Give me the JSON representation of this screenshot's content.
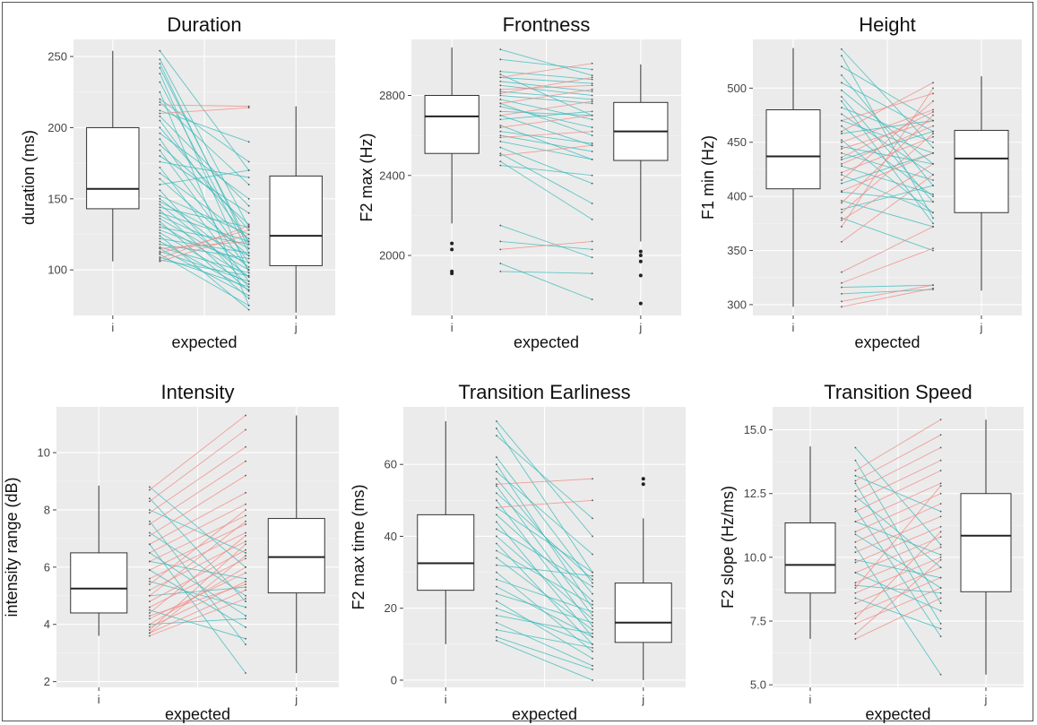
{
  "chart_data": [
    {
      "type": "boxplot-slopegraph",
      "title": "Duration",
      "xlabel": "expected",
      "ylabel": "duration (ms)",
      "categories": [
        "i",
        "j"
      ],
      "yticks": [
        100,
        150,
        200,
        250
      ],
      "ylim": [
        68,
        262
      ],
      "boxes": {
        "i": {
          "min": 106,
          "q1": 143,
          "median": 157,
          "q3": 200,
          "max": 254,
          "outliers": []
        },
        "j": {
          "min": 70,
          "q1": 103,
          "median": 124,
          "q3": 166,
          "max": 215,
          "outliers": []
        }
      },
      "lines_cyan": [
        [
          254,
          170
        ],
        [
          248,
          130
        ],
        [
          245,
          115
        ],
        [
          242,
          118
        ],
        [
          238,
          98
        ],
        [
          232,
          112
        ],
        [
          225,
          75
        ],
        [
          220,
          176
        ],
        [
          218,
          160
        ],
        [
          212,
          190
        ],
        [
          208,
          145
        ],
        [
          205,
          120
        ],
        [
          200,
          128
        ],
        [
          196,
          150
        ],
        [
          192,
          105
        ],
        [
          188,
          132
        ],
        [
          184,
          100
        ],
        [
          180,
          140
        ],
        [
          176,
          165
        ],
        [
          172,
          92
        ],
        [
          168,
          122
        ],
        [
          164,
          110
        ],
        [
          160,
          170
        ],
        [
          156,
          88
        ],
        [
          152,
          125
        ],
        [
          150,
          102
        ],
        [
          148,
          115
        ],
        [
          146,
          95
        ],
        [
          144,
          130
        ],
        [
          142,
          85
        ],
        [
          140,
          120
        ],
        [
          138,
          110
        ],
        [
          136,
          100
        ],
        [
          134,
          80
        ],
        [
          132,
          95
        ],
        [
          130,
          118
        ],
        [
          128,
          105
        ],
        [
          126,
          90
        ],
        [
          124,
          72
        ],
        [
          122,
          112
        ],
        [
          120,
          86
        ],
        [
          118,
          108
        ],
        [
          116,
          98
        ],
        [
          115,
          82
        ],
        [
          113,
          92
        ],
        [
          111,
          75
        ],
        [
          109,
          88
        ],
        [
          107,
          96
        ]
      ],
      "lines_red": [
        [
          216,
          215
        ],
        [
          210,
          214
        ],
        [
          112,
          128
        ],
        [
          115,
          120
        ],
        [
          108,
          131
        ],
        [
          106,
          125
        ]
      ]
    },
    {
      "type": "boxplot-slopegraph",
      "title": "Frontness",
      "xlabel": "expected",
      "ylabel": "F2 max (Hz)",
      "categories": [
        "i",
        "j"
      ],
      "yticks": [
        2000,
        2400,
        2800
      ],
      "yticklabels": [
        "2000",
        "2400",
        "2800"
      ],
      "ylim": [
        1700,
        3080
      ],
      "boxes": {
        "i": {
          "min": 2160,
          "q1": 2510,
          "median": 2695,
          "q3": 2800,
          "max": 3040,
          "outliers": [
            1910,
            1920,
            2030,
            2060
          ]
        },
        "j": {
          "min": 2070,
          "q1": 2475,
          "median": 2620,
          "q3": 2765,
          "max": 2955,
          "outliers": [
            1760,
            1900,
            1970,
            2000,
            2020
          ]
        }
      },
      "lines_cyan": [
        [
          3030,
          2900
        ],
        [
          2980,
          2930
        ],
        [
          2920,
          2880
        ],
        [
          2905,
          2700
        ],
        [
          2890,
          2860
        ],
        [
          2870,
          2820
        ],
        [
          2850,
          2800
        ],
        [
          2820,
          2780
        ],
        [
          2800,
          2760
        ],
        [
          2780,
          2680
        ],
        [
          2760,
          2600
        ],
        [
          2745,
          2640
        ],
        [
          2720,
          2700
        ],
        [
          2700,
          2550
        ],
        [
          2680,
          2720
        ],
        [
          2650,
          2480
        ],
        [
          2620,
          2560
        ],
        [
          2600,
          2520
        ],
        [
          2570,
          2480
        ],
        [
          2540,
          2360
        ],
        [
          2510,
          2260
        ],
        [
          2470,
          2180
        ],
        [
          2450,
          2400
        ],
        [
          2150,
          1990
        ],
        [
          2070,
          2030
        ],
        [
          1960,
          1780
        ],
        [
          1920,
          1910
        ]
      ],
      "lines_red": [
        [
          2890,
          2960
        ],
        [
          2830,
          2850
        ],
        [
          2810,
          2890
        ],
        [
          2760,
          2830
        ],
        [
          2700,
          2770
        ],
        [
          2640,
          2700
        ],
        [
          2590,
          2620
        ],
        [
          2500,
          2550
        ],
        [
          2030,
          2070
        ]
      ]
    },
    {
      "type": "boxplot-slopegraph",
      "title": "Height",
      "xlabel": "expected",
      "ylabel": "F1 min (Hz)",
      "categories": [
        "i",
        "j"
      ],
      "yticks": [
        300,
        350,
        400,
        450,
        500
      ],
      "ylim": [
        290,
        545
      ],
      "boxes": {
        "i": {
          "min": 298,
          "q1": 407,
          "median": 437,
          "q3": 480,
          "max": 537,
          "outliers": []
        },
        "j": {
          "min": 313,
          "q1": 385,
          "median": 435,
          "q3": 461,
          "max": 511,
          "outliers": []
        }
      },
      "lines_cyan": [
        [
          536,
          445
        ],
        [
          530,
          380
        ],
        [
          520,
          470
        ],
        [
          512,
          410
        ],
        [
          505,
          460
        ],
        [
          498,
          430
        ],
        [
          492,
          395
        ],
        [
          488,
          375
        ],
        [
          482,
          450
        ],
        [
          476,
          420
        ],
        [
          470,
          440
        ],
        [
          465,
          400
        ],
        [
          458,
          470
        ],
        [
          452,
          385
        ],
        [
          446,
          430
        ],
        [
          440,
          415
        ],
        [
          434,
          460
        ],
        [
          428,
          402
        ],
        [
          420,
          385
        ],
        [
          412,
          440
        ],
        [
          404,
          395
        ],
        [
          396,
          372
        ],
        [
          388,
          410
        ],
        [
          380,
          350
        ],
        [
          316,
          318
        ],
        [
          310,
          314
        ]
      ],
      "lines_red": [
        [
          470,
          495
        ],
        [
          460,
          505
        ],
        [
          450,
          480
        ],
        [
          444,
          470
        ],
        [
          436,
          478
        ],
        [
          430,
          465
        ],
        [
          422,
          455
        ],
        [
          415,
          488
        ],
        [
          405,
          440
        ],
        [
          394,
          475
        ],
        [
          385,
          458
        ],
        [
          378,
          430
        ],
        [
          372,
          500
        ],
        [
          358,
          420
        ],
        [
          330,
          372
        ],
        [
          320,
          352
        ],
        [
          303,
          318
        ],
        [
          298,
          315
        ]
      ]
    },
    {
      "type": "boxplot-slopegraph",
      "title": "Intensity",
      "xlabel": "expected",
      "ylabel": "intensity range (dB)",
      "categories": [
        "i",
        "j"
      ],
      "yticks": [
        2,
        4,
        6,
        8,
        10
      ],
      "ylim": [
        1.8,
        11.6
      ],
      "boxes": {
        "i": {
          "min": 3.6,
          "q1": 4.4,
          "median": 5.25,
          "q3": 6.5,
          "max": 8.85,
          "outliers": []
        },
        "j": {
          "min": 2.3,
          "q1": 5.1,
          "median": 6.35,
          "q3": 7.7,
          "max": 11.3,
          "outliers": []
        }
      },
      "lines_cyan": [
        [
          8.8,
          6.0
        ],
        [
          8.4,
          4.8
        ],
        [
          8.0,
          6.5
        ],
        [
          7.6,
          3.3
        ],
        [
          7.2,
          5.0
        ],
        [
          6.8,
          2.3
        ],
        [
          6.5,
          4.3
        ],
        [
          6.2,
          5.6
        ],
        [
          5.9,
          3.9
        ],
        [
          5.5,
          4.6
        ],
        [
          5.0,
          5.3
        ],
        [
          4.5,
          3.5
        ],
        [
          4.0,
          4.2
        ]
      ],
      "lines_red": [
        [
          8.7,
          11.3
        ],
        [
          8.3,
          10.8
        ],
        [
          7.9,
          10.2
        ],
        [
          7.5,
          9.7
        ],
        [
          7.1,
          9.2
        ],
        [
          6.8,
          8.6
        ],
        [
          6.5,
          8.2
        ],
        [
          6.2,
          7.8
        ],
        [
          5.9,
          7.5
        ],
        [
          5.6,
          7.2
        ],
        [
          5.4,
          8.0
        ],
        [
          5.2,
          6.9
        ],
        [
          5.0,
          7.6
        ],
        [
          4.8,
          6.6
        ],
        [
          4.6,
          6.3
        ],
        [
          4.4,
          7.1
        ],
        [
          4.2,
          5.8
        ],
        [
          4.0,
          6.0
        ],
        [
          3.9,
          5.5
        ],
        [
          3.8,
          6.8
        ],
        [
          3.7,
          5.2
        ],
        [
          3.6,
          4.9
        ],
        [
          3.7,
          6.4
        ],
        [
          4.3,
          5.4
        ]
      ]
    },
    {
      "type": "boxplot-slopegraph",
      "title": "Transition Earliness",
      "xlabel": "expected",
      "ylabel": "F2 max time (ms)",
      "categories": [
        "i",
        "j"
      ],
      "yticks": [
        0,
        20,
        40,
        60
      ],
      "ylim": [
        -2,
        76
      ],
      "boxes": {
        "i": {
          "min": 10,
          "q1": 25,
          "median": 32.5,
          "q3": 46,
          "max": 72,
          "outliers": []
        },
        "j": {
          "min": 0,
          "q1": 10.5,
          "median": 16,
          "q3": 27,
          "max": 45,
          "outliers": [
            54.5,
            56
          ]
        }
      },
      "lines_cyan": [
        [
          72,
          40
        ],
        [
          70,
          30
        ],
        [
          68,
          45
        ],
        [
          62,
          27
        ],
        [
          60,
          20
        ],
        [
          58,
          35
        ],
        [
          56,
          24
        ],
        [
          54,
          18
        ],
        [
          52,
          28
        ],
        [
          50,
          15
        ],
        [
          48,
          30
        ],
        [
          46,
          22
        ],
        [
          44,
          12
        ],
        [
          42,
          26
        ],
        [
          40,
          17
        ],
        [
          38,
          10
        ],
        [
          36,
          21
        ],
        [
          34,
          14
        ],
        [
          32,
          29
        ],
        [
          30,
          8
        ],
        [
          28,
          19
        ],
        [
          26,
          12
        ],
        [
          24,
          16
        ],
        [
          22,
          6
        ],
        [
          20,
          10
        ],
        [
          18,
          13
        ],
        [
          16,
          4
        ],
        [
          14,
          9
        ],
        [
          12,
          3
        ],
        [
          11,
          0
        ]
      ],
      "lines_red": [
        [
          54.5,
          56
        ],
        [
          48,
          50
        ]
      ]
    },
    {
      "type": "boxplot-slopegraph",
      "title": "Transition Speed",
      "xlabel": "expected",
      "ylabel": "F2 slope (Hz/ms)",
      "categories": [
        "i",
        "j"
      ],
      "yticks": [
        5.0,
        7.5,
        10.0,
        12.5,
        15.0
      ],
      "yticklabels": [
        "5.0",
        "7.5",
        "10.0",
        "12.5",
        "15.0"
      ],
      "ylim": [
        4.9,
        15.9
      ],
      "boxes": {
        "i": {
          "min": 6.8,
          "q1": 8.6,
          "median": 9.7,
          "q3": 11.35,
          "max": 14.35,
          "outliers": []
        },
        "j": {
          "min": 5.4,
          "q1": 8.65,
          "median": 10.85,
          "q3": 12.5,
          "max": 15.4,
          "outliers": []
        }
      },
      "lines_cyan": [
        [
          14.3,
          10.5
        ],
        [
          13.8,
          8.2
        ],
        [
          13.2,
          11.8
        ],
        [
          12.9,
          7.4
        ],
        [
          12.4,
          9.6
        ],
        [
          11.9,
          6.9
        ],
        [
          11.4,
          10.1
        ],
        [
          10.9,
          8.8
        ],
        [
          10.4,
          5.4
        ],
        [
          9.9,
          9.2
        ],
        [
          9.4,
          7.9
        ],
        [
          8.9,
          8.6
        ],
        [
          8.4,
          7.2
        ]
      ],
      "lines_red": [
        [
          13.4,
          15.4
        ],
        [
          13.0,
          14.8
        ],
        [
          12.6,
          14.3
        ],
        [
          12.2,
          13.8
        ],
        [
          11.8,
          13.4
        ],
        [
          11.4,
          12.9
        ],
        [
          11.0,
          12.5
        ],
        [
          10.6,
          12.1
        ],
        [
          10.2,
          11.6
        ],
        [
          9.8,
          11.2
        ],
        [
          9.4,
          10.8
        ],
        [
          9.0,
          10.4
        ],
        [
          8.6,
          10.0
        ],
        [
          8.2,
          9.6
        ],
        [
          7.8,
          9.2
        ],
        [
          7.4,
          8.8
        ],
        [
          7.0,
          9.9
        ],
        [
          6.8,
          8.4
        ],
        [
          7.6,
          11.0
        ],
        [
          8.8,
          12.8
        ]
      ]
    }
  ],
  "colors": {
    "panel_bg": "#ebebeb",
    "grid": "#ffffff",
    "line_cyan": "#35b8b8",
    "line_red": "#f08680",
    "box_stroke": "#333333"
  }
}
